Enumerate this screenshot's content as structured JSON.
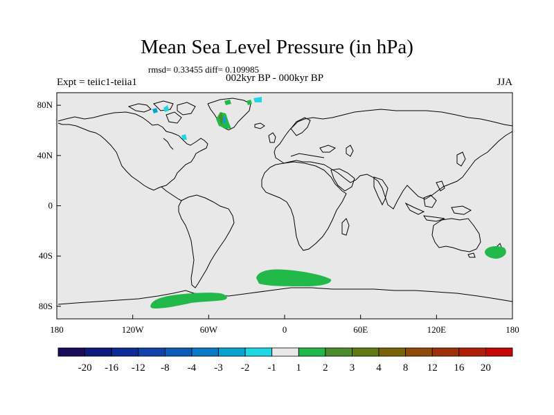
{
  "title": "Mean Sea Level Pressure (in hPa)",
  "stats": "rmsd= 0.33455  diff= 0.109985",
  "experiment": "Expt = teiic1-teiia1",
  "period": "002kyr BP - 000kyr BP",
  "season": "JJA",
  "axes": {
    "lat_ticks": [
      {
        "value": 80,
        "label": "80N"
      },
      {
        "value": 40,
        "label": "40N"
      },
      {
        "value": 0,
        "label": "0"
      },
      {
        "value": -40,
        "label": "40S"
      },
      {
        "value": -80,
        "label": "80S"
      }
    ],
    "lon_ticks": [
      {
        "value": -180,
        "label": "180"
      },
      {
        "value": -120,
        "label": "120W"
      },
      {
        "value": -60,
        "label": "60W"
      },
      {
        "value": 0,
        "label": "0"
      },
      {
        "value": 60,
        "label": "60E"
      },
      {
        "value": 120,
        "label": "120E"
      },
      {
        "value": 180,
        "label": "180"
      }
    ],
    "lon_range": [
      -180,
      180
    ],
    "lat_range": [
      -90,
      90
    ]
  },
  "colorbar": {
    "colors": [
      "#1a0a5a",
      "#0c1a7c",
      "#0e2b95",
      "#1042a8",
      "#0d5bb5",
      "#0a78c2",
      "#0aa2d0",
      "#1fd6e4",
      "#e8e8e8",
      "#22b84a",
      "#4c8c2a",
      "#5f7a12",
      "#7a6208",
      "#8e4a0a",
      "#9c3208",
      "#b01e08",
      "#c40808"
    ],
    "labels": [
      "-20",
      "-16",
      "-12",
      "-8",
      "-4",
      "-3",
      "-2",
      "-1",
      "1",
      "2",
      "3",
      "4",
      "8",
      "12",
      "16",
      "20"
    ]
  },
  "chart_data": {
    "type": "heatmap",
    "title": "Mean Sea Level Pressure (in hPa)",
    "variable": "Mean Sea Level Pressure difference",
    "unit": "hPa",
    "levels": [
      -20,
      -16,
      -12,
      -8,
      -4,
      -3,
      -2,
      -1,
      1,
      2,
      3,
      4,
      8,
      12,
      16,
      20
    ],
    "regions": [
      {
        "lon": -15,
        "lat": -61,
        "range": "1 to 2"
      },
      {
        "lon": 165,
        "lat": -38,
        "range": "1 to 2"
      },
      {
        "lon": -85,
        "lat": -78,
        "range": "1 to 2"
      },
      {
        "lon": -40,
        "lat": 72,
        "range": "-3 to 4"
      },
      {
        "lon": -80,
        "lat": 76,
        "range": "-2 to 1"
      }
    ]
  }
}
